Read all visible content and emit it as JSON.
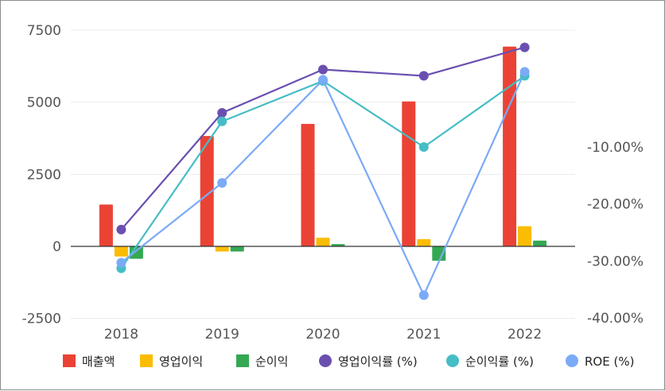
{
  "chart_data": {
    "type": "bar",
    "categories": [
      "2018",
      "2019",
      "2020",
      "2021",
      "2022"
    ],
    "left_axis": {
      "ticks": [
        "7500",
        "5000",
        "2500",
        "0",
        "-2500"
      ],
      "min": -2500,
      "max": 7500
    },
    "right_axis": {
      "ticks": [
        "-10.00%",
        "-20.00%",
        "-30.00%",
        "-40.00%"
      ],
      "min": -40,
      "max": 10
    },
    "series": [
      {
        "name": "매출액",
        "kind": "bar",
        "axis": "left",
        "color": "#ea4335",
        "values": [
          1450,
          3830,
          4250,
          5030,
          6930
        ]
      },
      {
        "name": "영업이익",
        "kind": "bar",
        "axis": "left",
        "color": "#fbbc04",
        "values": [
          -350,
          -180,
          300,
          250,
          700
        ]
      },
      {
        "name": "순이익",
        "kind": "bar",
        "axis": "left",
        "color": "#34a853",
        "values": [
          -430,
          -180,
          80,
          -500,
          200
        ]
      },
      {
        "name": "영업이익률 (%)",
        "kind": "line",
        "axis": "right",
        "color": "#6a4fb0",
        "values": [
          -24.5,
          -4.0,
          3.6,
          2.5,
          7.5
        ]
      },
      {
        "name": "순이익률 (%)",
        "kind": "line",
        "axis": "right",
        "color": "#46bdc6",
        "values": [
          -31.3,
          -5.5,
          1.6,
          -10.0,
          2.5
        ]
      },
      {
        "name": "ROE (%)",
        "kind": "line",
        "axis": "right",
        "color": "#7baaf7",
        "values": [
          -30.3,
          -16.3,
          1.8,
          -36.0,
          3.2
        ]
      }
    ],
    "grid": true,
    "legend": "bottom"
  }
}
